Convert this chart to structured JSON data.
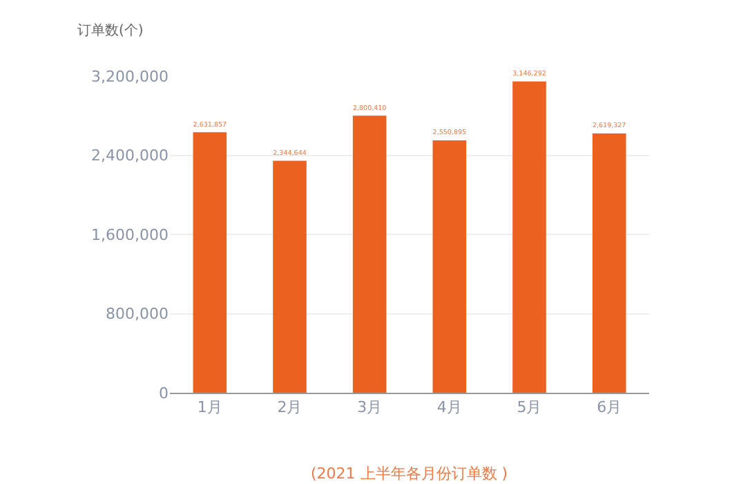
{
  "chart_data": {
    "type": "bar",
    "ylabel": "订单数(个)",
    "categories": [
      "1月",
      "2月",
      "3月",
      "4月",
      "5月",
      "6月"
    ],
    "values": [
      2631857,
      2344644,
      2800410,
      2550895,
      3146292,
      2619327
    ],
    "color": "#ea6120",
    "value_labels": [
      "2,631,857",
      "2,344,644",
      "2,800,410",
      "2,550,895",
      "3,146,292",
      "2,619,327"
    ],
    "ylim": [
      0,
      3200000
    ],
    "yticks": [
      {
        "value": 0,
        "label": "0"
      },
      {
        "value": 800000,
        "label": "800,000"
      },
      {
        "value": 1600000,
        "label": "1,600,000"
      },
      {
        "value": 2400000,
        "label": "2,400,000"
      },
      {
        "value": 3200000,
        "label": "3,200,000"
      }
    ],
    "grid": "y",
    "annotations": [
      "(2021 上半年各月份订单数 )"
    ]
  }
}
